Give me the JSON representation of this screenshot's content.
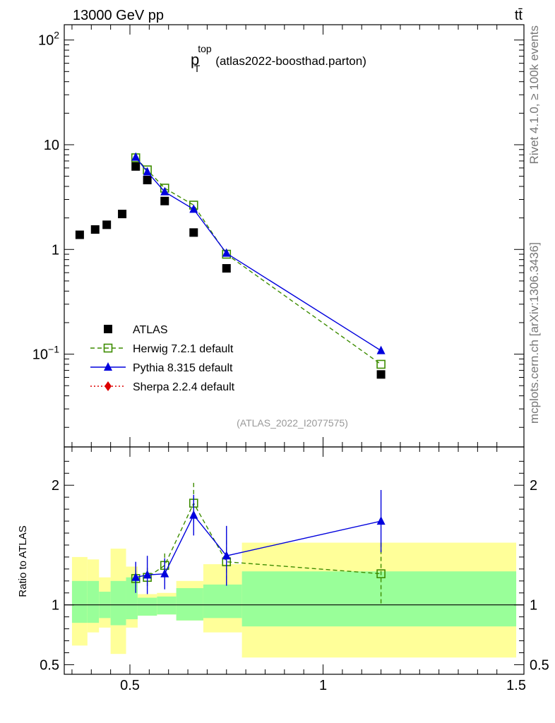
{
  "header": {
    "left": "13000 GeV pp",
    "right": "tt̄"
  },
  "side_labels": {
    "rivet": "Rivet 4.1.0, ≥ 100k events",
    "mcplots": "mcplots.cern.ch [arXiv:1306.3436]"
  },
  "chart_data": {
    "type": "scatter",
    "title_main": "p",
    "title_sup": "top",
    "title_sub": "T",
    "title_suffix": "(atlas2022-boosthad.parton)",
    "watermark": "(ATLAS_2022_I2077575)",
    "xlim": [
      0.33,
      1.52
    ],
    "upper": {
      "yscale": "log",
      "ylim": [
        0.013,
        140
      ],
      "y_ticks": [
        {
          "value": 100,
          "label": "10",
          "sup": "2"
        },
        {
          "value": 10,
          "label": "10",
          "sup": ""
        },
        {
          "value": 1,
          "label": "1",
          "sup": ""
        },
        {
          "value": 0.1,
          "label": "10",
          "sup": "−1"
        }
      ]
    },
    "lower": {
      "ylabel": "Ratio to ATLAS",
      "ylim": [
        0.42,
        2.32
      ],
      "y_ticks": [
        {
          "value": 0.5,
          "label": "0.5"
        },
        {
          "value": 1,
          "label": "1"
        },
        {
          "value": 2,
          "label": "2"
        }
      ],
      "bands": [
        {
          "x0": 0.35,
          "x1": 0.39,
          "in0": 0.85,
          "in1": 1.2,
          "out0": 0.66,
          "out1": 1.4
        },
        {
          "x0": 0.39,
          "x1": 0.42,
          "in0": 0.85,
          "in1": 1.2,
          "out0": 0.77,
          "out1": 1.38
        },
        {
          "x0": 0.42,
          "x1": 0.45,
          "in0": 0.89,
          "in1": 1.11,
          "out0": 0.81,
          "out1": 1.23
        },
        {
          "x0": 0.45,
          "x1": 0.49,
          "in0": 0.83,
          "in1": 1.2,
          "out0": 0.59,
          "out1": 1.47
        },
        {
          "x0": 0.49,
          "x1": 0.52,
          "in0": 0.88,
          "in1": 1.23,
          "out0": 0.81,
          "out1": 1.32
        },
        {
          "x0": 0.52,
          "x1": 0.57,
          "in0": 0.91,
          "in1": 1.06,
          "out0": 0.91,
          "out1": 1.09
        },
        {
          "x0": 0.57,
          "x1": 0.62,
          "in0": 0.92,
          "in1": 1.07,
          "out0": 0.92,
          "out1": 1.1
        },
        {
          "x0": 0.62,
          "x1": 0.69,
          "in0": 0.87,
          "in1": 1.14,
          "out0": 0.87,
          "out1": 1.2
        },
        {
          "x0": 0.69,
          "x1": 0.79,
          "in0": 0.89,
          "in1": 1.17,
          "out0": 0.77,
          "out1": 1.34
        },
        {
          "x0": 0.79,
          "x1": 1.5,
          "in0": 0.82,
          "in1": 1.28,
          "out0": 0.56,
          "out1": 1.52
        }
      ]
    },
    "x_ticks": [
      {
        "value": 0.5,
        "label": "0.5"
      },
      {
        "value": 1,
        "label": "1"
      },
      {
        "value": 1.5,
        "label": "1.5"
      }
    ],
    "series": [
      {
        "name": "ATLAS",
        "marker": "square-filled",
        "color": "#000000",
        "line": "none",
        "x": [
          0.37,
          0.41,
          0.44,
          0.48,
          0.515,
          0.545,
          0.59,
          0.665,
          0.75,
          1.15
        ],
        "y": [
          1.38,
          1.55,
          1.72,
          2.18,
          6.2,
          4.6,
          2.9,
          1.45,
          0.66,
          0.064
        ],
        "ratio": []
      },
      {
        "name": "Herwig 7.2.1 default",
        "marker": "square-open",
        "color": "#3d8c00",
        "line": "dashed",
        "x": [
          0.515,
          0.545,
          0.59,
          0.665,
          0.75,
          1.15
        ],
        "y": [
          7.5,
          5.75,
          3.85,
          2.65,
          0.9,
          0.08
        ],
        "ratio": [
          1.22,
          1.23,
          1.33,
          1.85,
          1.36,
          1.26
        ],
        "ratio_err": [
          0.07,
          0.08,
          0.1,
          0.17,
          0.18,
          0.26
        ]
      },
      {
        "name": "Pythia 8.315 default",
        "marker": "triangle-filled",
        "color": "#0000dd",
        "line": "solid",
        "x": [
          0.515,
          0.545,
          0.59,
          0.665,
          0.75,
          1.15
        ],
        "y": [
          7.6,
          5.5,
          3.55,
          2.42,
          0.92,
          0.108
        ],
        "ratio": [
          1.23,
          1.25,
          1.26,
          1.75,
          1.41,
          1.7
        ],
        "ratio_err": [
          0.13,
          0.16,
          0.13,
          0.17,
          0.25,
          0.26
        ]
      },
      {
        "name": "Sherpa 2.2.4 default",
        "marker": "diamond-filled",
        "color": "#dd0000",
        "line": "dotted",
        "x": [],
        "y": [],
        "ratio": []
      }
    ]
  }
}
